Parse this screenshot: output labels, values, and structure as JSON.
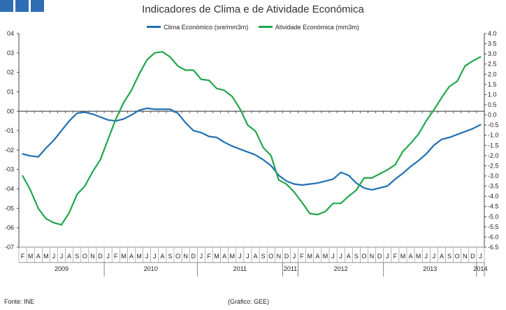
{
  "chart_data": {
    "type": "line",
    "title": "Indicadores de Clima e de Atividade Económica",
    "source": "Fonte: INE",
    "credit": "(Gráfico: GEE)",
    "colors": {
      "clima": "#1f6fb2",
      "atividade": "#21a64a"
    },
    "left_axis": {
      "min": -7,
      "max": 4,
      "ticks": [
        "04",
        "03",
        "02",
        "01",
        "00",
        "-01",
        "-02",
        "-03",
        "-04",
        "-05",
        "-06",
        "-07"
      ]
    },
    "right_axis": {
      "min": -6.5,
      "max": 4.0,
      "ticks": [
        "4.0",
        "3.5",
        "3.0",
        "2.5",
        "2.0",
        "1.5",
        "1.0",
        "0.5",
        "0.0",
        "-0.5",
        "-1.0",
        "-1.5",
        "-2.0",
        "-2.5",
        "-3.0",
        "-3.5",
        "-4.0",
        "-4.5",
        "-5.0",
        "-5.5",
        "-6.0",
        "-6.5"
      ]
    },
    "months": [
      "F",
      "M",
      "A",
      "M",
      "J",
      "J",
      "A",
      "S",
      "O",
      "N",
      "D",
      "J",
      "F",
      "M",
      "A",
      "M",
      "J",
      "J",
      "A",
      "S",
      "O",
      "N",
      "D",
      "J",
      "F",
      "M",
      "A",
      "M",
      "J",
      "J",
      "A",
      "S",
      "O",
      "N",
      "D",
      "J",
      "F",
      "M",
      "A",
      "M",
      "J",
      "J",
      "A",
      "S",
      "O",
      "N",
      "D",
      "J",
      "F",
      "M",
      "A",
      "M",
      "J",
      "J",
      "A",
      "S",
      "O",
      "N",
      "D",
      "J"
    ],
    "years": [
      {
        "label": "2009",
        "from": 0,
        "to": 10
      },
      {
        "label": "2010",
        "from": 11,
        "to": 22
      },
      {
        "label": "2011",
        "from": 23,
        "to": 33
      },
      {
        "label": "2011",
        "from": 34,
        "to": 35
      },
      {
        "label": "2012",
        "from": 36,
        "to": 46
      },
      {
        "label": "2013",
        "from": 47,
        "to": 58
      },
      {
        "label": "2014",
        "from": 59,
        "to": 59
      }
    ],
    "series": [
      {
        "name": "Clima Económico (sre/mm3m)",
        "axis": "left",
        "color": "#1f6fb2",
        "values": [
          -2.2,
          -2.3,
          -2.35,
          -1.9,
          -1.5,
          -1.0,
          -0.5,
          -0.1,
          -0.05,
          -0.15,
          -0.3,
          -0.45,
          -0.5,
          -0.4,
          -0.2,
          0.05,
          0.15,
          0.1,
          0.1,
          0.1,
          -0.1,
          -0.6,
          -1.0,
          -1.1,
          -1.3,
          -1.35,
          -1.6,
          -1.8,
          -1.95,
          -2.1,
          -2.25,
          -2.5,
          -2.8,
          -3.3,
          -3.6,
          -3.75,
          -3.8,
          -3.75,
          -3.7,
          -3.6,
          -3.5,
          -3.15,
          -3.3,
          -3.7,
          -3.95,
          -4.05,
          -3.95,
          -3.85,
          -3.5,
          -3.2,
          -2.85,
          -2.55,
          -2.2,
          -1.75,
          -1.45,
          -1.35,
          -1.2,
          -1.05,
          -0.9,
          -0.7
        ]
      },
      {
        "name": "Atividade Económica (mm3m)",
        "axis": "right",
        "color": "#21a64a",
        "values": [
          -3.0,
          -3.7,
          -4.6,
          -5.1,
          -5.3,
          -5.4,
          -4.8,
          -3.9,
          -3.5,
          -2.8,
          -2.2,
          -1.2,
          -0.2,
          0.6,
          1.2,
          2.0,
          2.7,
          3.05,
          3.1,
          2.85,
          2.4,
          2.2,
          2.2,
          1.75,
          1.7,
          1.3,
          1.2,
          0.9,
          0.3,
          -0.5,
          -0.8,
          -1.6,
          -2.0,
          -3.2,
          -3.4,
          -3.8,
          -4.3,
          -4.85,
          -4.9,
          -4.75,
          -4.35,
          -4.35,
          -4.0,
          -3.7,
          -3.1,
          -3.1,
          -2.9,
          -2.7,
          -2.45,
          -1.8,
          -1.4,
          -0.95,
          -0.3,
          0.25,
          0.85,
          1.4,
          1.65,
          2.4,
          2.65,
          2.85
        ]
      }
    ]
  }
}
